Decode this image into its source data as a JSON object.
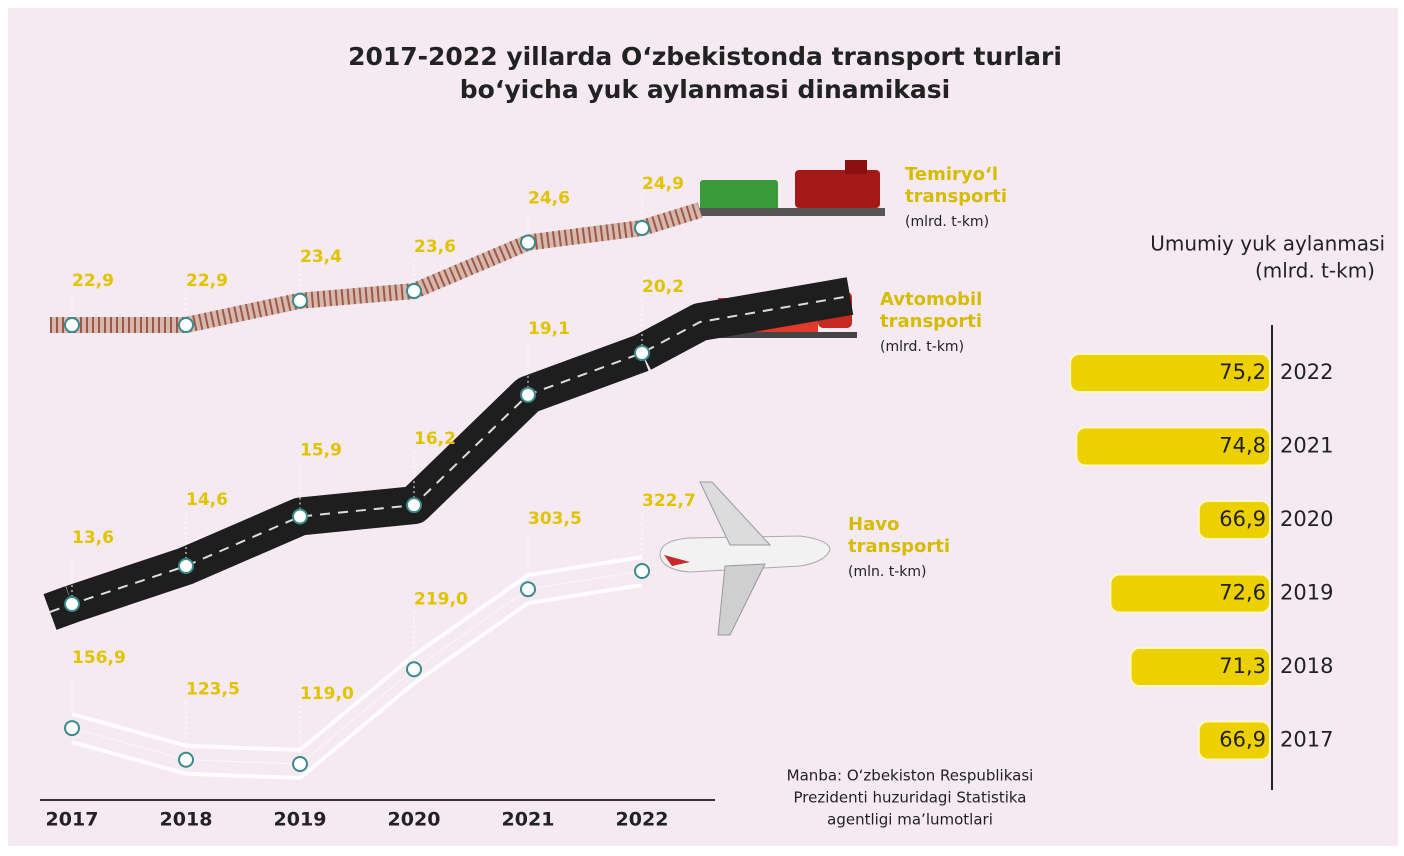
{
  "title": [
    "2017-2022 yillarda O‘zbekistonda transport turlari",
    "bo‘yicha yuk aylanmasi dinamikasi"
  ],
  "source": [
    "Manba:  O‘zbekiston Respublikasi",
    "Prezidenti huzuridagi Statistika",
    "agentligi ma’lumotlari"
  ],
  "chart_data": [
    {
      "type": "line",
      "categories": [
        "2017",
        "2018",
        "2019",
        "2020",
        "2021",
        "2022"
      ],
      "series": [
        {
          "name": "Temiryo‘l transporti",
          "unit": "(mlrd. t-km)",
          "color": "#9b5a48",
          "values": [
            22.9,
            22.9,
            23.4,
            23.6,
            24.6,
            24.9
          ],
          "value_labels": [
            "22,9",
            "22,9",
            "23,4",
            "23,6",
            "24,6",
            "24,9"
          ]
        },
        {
          "name": "Avtomobil transporti",
          "unit": "(mlrd. t-km)",
          "color": "#1e1e1e",
          "values": [
            13.6,
            14.6,
            15.9,
            16.2,
            19.1,
            20.2
          ],
          "value_labels": [
            "13,6",
            "14,6",
            "15,9",
            "16,2",
            "19,1",
            "20,2"
          ]
        },
        {
          "name": "Havo transporti",
          "unit": "(mln. t-km)",
          "color": "#ffffff",
          "values": [
            156.9,
            123.5,
            119.0,
            219.0,
            303.5,
            322.7
          ],
          "value_labels": [
            "156,9",
            "123,5",
            "119,0",
            "219,0",
            "303,5",
            "322,7"
          ]
        }
      ]
    },
    {
      "type": "bar",
      "orientation": "horizontal",
      "title": "Umumiy yuk aylanmasi",
      "subtitle": "(mlrd. t-km)",
      "categories": [
        "2022",
        "2021",
        "2020",
        "2019",
        "2018",
        "2017"
      ],
      "values": [
        75.2,
        74.8,
        66.9,
        72.6,
        71.3,
        66.9
      ],
      "value_labels": [
        "75,2",
        "74,8",
        "66,9",
        "72,6",
        "71,3",
        "66,9"
      ],
      "color": "#ecd000",
      "xlim": [
        62.3,
        76.5
      ]
    }
  ]
}
